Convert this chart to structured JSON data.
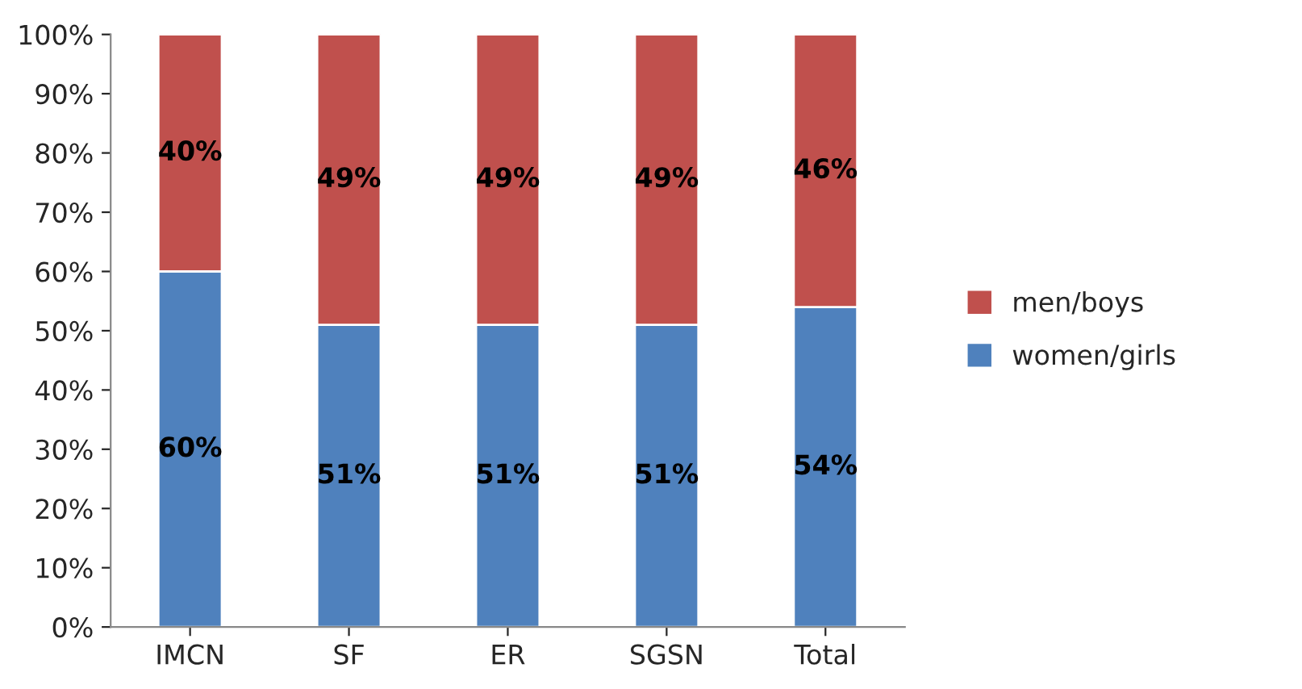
{
  "chart_data": {
    "type": "bar",
    "stacked": true,
    "categories": [
      "IMCN",
      "SF",
      "ER",
      "SGSN",
      "Total"
    ],
    "series": [
      {
        "name": "women/girls",
        "color": "#4f81bd",
        "values": [
          60,
          51,
          51,
          51,
          54
        ],
        "value_labels": [
          "60%",
          "51%",
          "51%",
          "51%",
          "54%"
        ]
      },
      {
        "name": "men/boys",
        "color": "#c0504d",
        "values": [
          40,
          49,
          49,
          49,
          46
        ],
        "value_labels": [
          "40%",
          "49%",
          "49%",
          "49%",
          "46%"
        ]
      }
    ],
    "ylim": [
      0,
      100
    ],
    "yticks": [
      {
        "value": 0,
        "label": "0%"
      },
      {
        "value": 10,
        "label": "10%"
      },
      {
        "value": 20,
        "label": "20%"
      },
      {
        "value": 30,
        "label": "30%"
      },
      {
        "value": 40,
        "label": "40%"
      },
      {
        "value": 50,
        "label": "50%"
      },
      {
        "value": 60,
        "label": "60%"
      },
      {
        "value": 70,
        "label": "70%"
      },
      {
        "value": 80,
        "label": "80%"
      },
      {
        "value": 90,
        "label": "90%"
      },
      {
        "value": 100,
        "label": "100%"
      }
    ],
    "grid": false,
    "legend": "right"
  }
}
